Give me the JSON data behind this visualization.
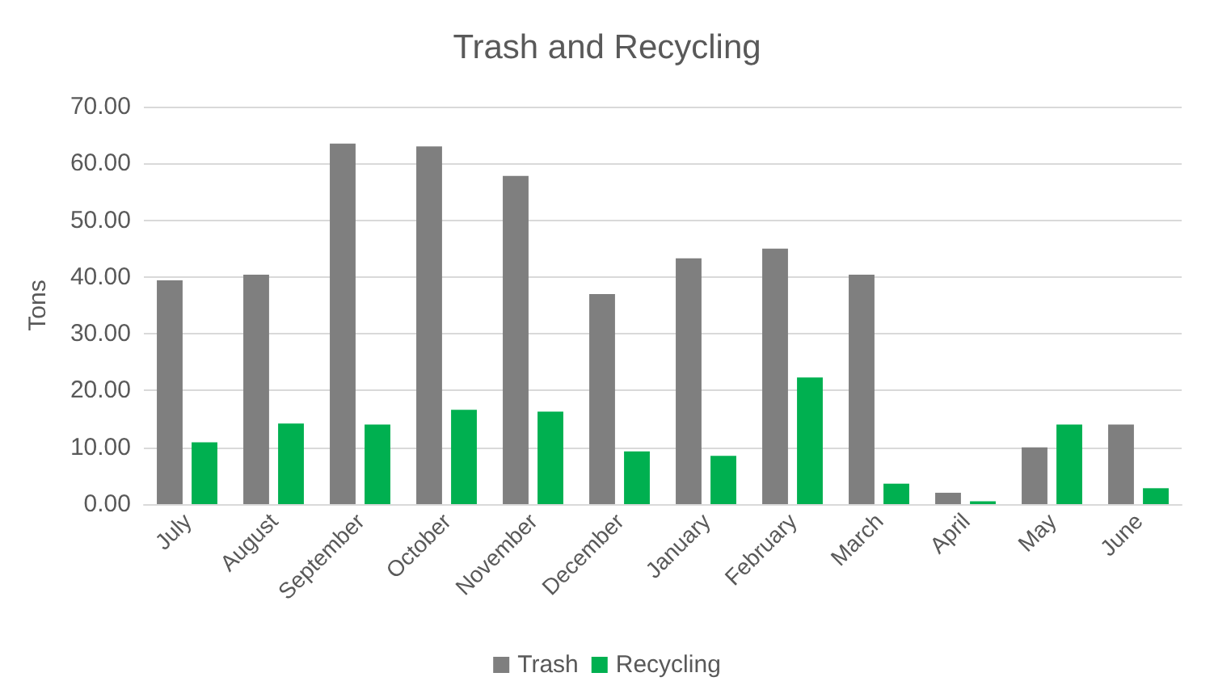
{
  "chart_data": {
    "type": "bar",
    "title": "Trash and Recycling",
    "ylabel": "Tons",
    "categories": [
      "July",
      "August",
      "September",
      "October",
      "November",
      "December",
      "January",
      "February",
      "March",
      "April",
      "May",
      "June"
    ],
    "series": [
      {
        "name": "Trash",
        "color": "#7f7f7f",
        "values": [
          39.4,
          40.4,
          63.5,
          63,
          57.8,
          37,
          43.3,
          45,
          40.4,
          2,
          10,
          14
        ]
      },
      {
        "name": "Recycling",
        "color": "#00b050",
        "values": [
          10.9,
          14.2,
          14,
          16.6,
          16.3,
          9.3,
          8.5,
          22.3,
          3.6,
          0.5,
          14,
          2.8
        ]
      }
    ],
    "ylim": [
      0,
      70
    ],
    "yticks": [
      {
        "value": 0,
        "label": "0.00"
      },
      {
        "value": 10,
        "label": "10.00"
      },
      {
        "value": 20,
        "label": "20.00"
      },
      {
        "value": 30,
        "label": "30.00"
      },
      {
        "value": 40,
        "label": "40.00"
      },
      {
        "value": 50,
        "label": "50.00"
      },
      {
        "value": 60,
        "label": "60.00"
      },
      {
        "value": 70,
        "label": "70.00"
      }
    ],
    "grid": true,
    "legend": "bottom"
  }
}
